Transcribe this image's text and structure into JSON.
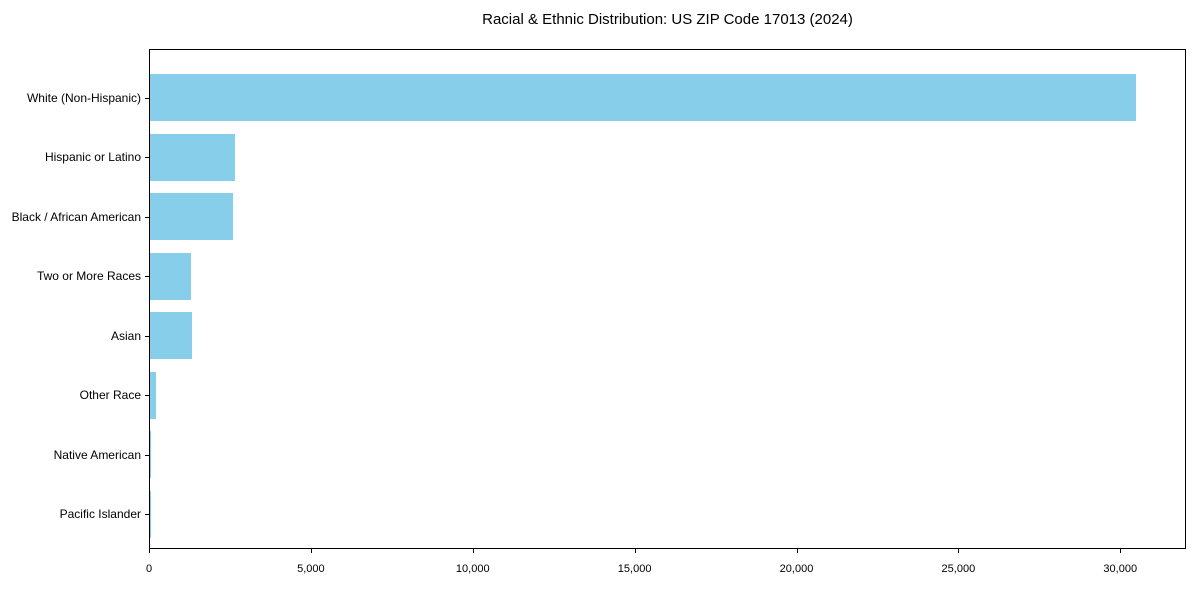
{
  "title": "Racial & Ethnic Distribution: US ZIP Code 17013 (2024)",
  "colors": {
    "bar": "#87CEEB",
    "spine": "#000000",
    "text": "#000000",
    "background": "#ffffff"
  },
  "chart_data": {
    "type": "bar",
    "orientation": "horizontal",
    "title": "Racial & Ethnic Distribution: US ZIP Code 17013 (2024)",
    "xlabel": "",
    "ylabel": "",
    "categories": [
      "White (Non-Hispanic)",
      "Hispanic or Latino",
      "Black / African American",
      "Two or More Races",
      "Asian",
      "Other Race",
      "Native American",
      "Pacific Islander"
    ],
    "values": [
      30450,
      2625,
      2560,
      1255,
      1285,
      185,
      25,
      10
    ],
    "xlim": [
      0,
      32000
    ],
    "x_ticks": [
      0,
      5000,
      10000,
      15000,
      20000,
      25000,
      30000
    ],
    "x_tick_labels": [
      "0",
      "5,000",
      "10,000",
      "15,000",
      "20,000",
      "25,000",
      "30,000"
    ],
    "bar_color": "#87CEEB",
    "grid": false,
    "legend_position": "none"
  }
}
